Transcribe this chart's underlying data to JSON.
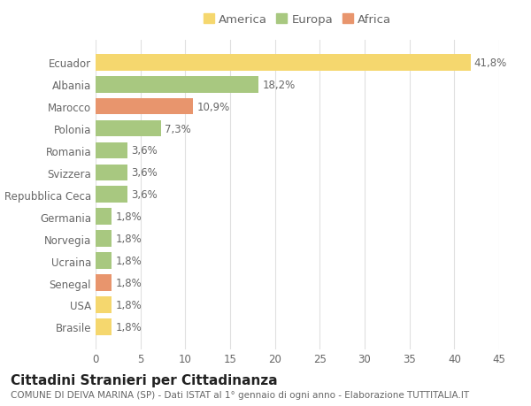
{
  "categories": [
    "Brasile",
    "USA",
    "Senegal",
    "Ucraina",
    "Norvegia",
    "Germania",
    "Repubblica Ceca",
    "Svizzera",
    "Romania",
    "Polonia",
    "Marocco",
    "Albania",
    "Ecuador"
  ],
  "values": [
    1.8,
    1.8,
    1.8,
    1.8,
    1.8,
    1.8,
    3.6,
    3.6,
    3.6,
    7.3,
    10.9,
    18.2,
    41.8
  ],
  "colors": [
    "#F5D76E",
    "#F5D76E",
    "#E8956D",
    "#A8C880",
    "#A8C880",
    "#A8C880",
    "#A8C880",
    "#A8C880",
    "#A8C880",
    "#A8C880",
    "#E8956D",
    "#A8C880",
    "#F5D76E"
  ],
  "labels": [
    "1,8%",
    "1,8%",
    "1,8%",
    "1,8%",
    "1,8%",
    "1,8%",
    "3,6%",
    "3,6%",
    "3,6%",
    "7,3%",
    "10,9%",
    "18,2%",
    "41,8%"
  ],
  "legend": [
    {
      "label": "America",
      "color": "#F5D76E"
    },
    {
      "label": "Europa",
      "color": "#A8C880"
    },
    {
      "label": "Africa",
      "color": "#E8956D"
    }
  ],
  "xlim": [
    0,
    45
  ],
  "xticks": [
    0,
    5,
    10,
    15,
    20,
    25,
    30,
    35,
    40,
    45
  ],
  "title": "Cittadini Stranieri per Cittadinanza",
  "subtitle": "COMUNE DI DEIVA MARINA (SP) - Dati ISTAT al 1° gennaio di ogni anno - Elaborazione TUTTITALIA.IT",
  "background_color": "#FFFFFF",
  "plot_bg_color": "#FFFFFF",
  "grid_color": "#E0E0E0",
  "bar_height": 0.75,
  "label_fontsize": 8.5,
  "tick_fontsize": 8.5,
  "title_fontsize": 11,
  "subtitle_fontsize": 7.5,
  "legend_fontsize": 9.5
}
